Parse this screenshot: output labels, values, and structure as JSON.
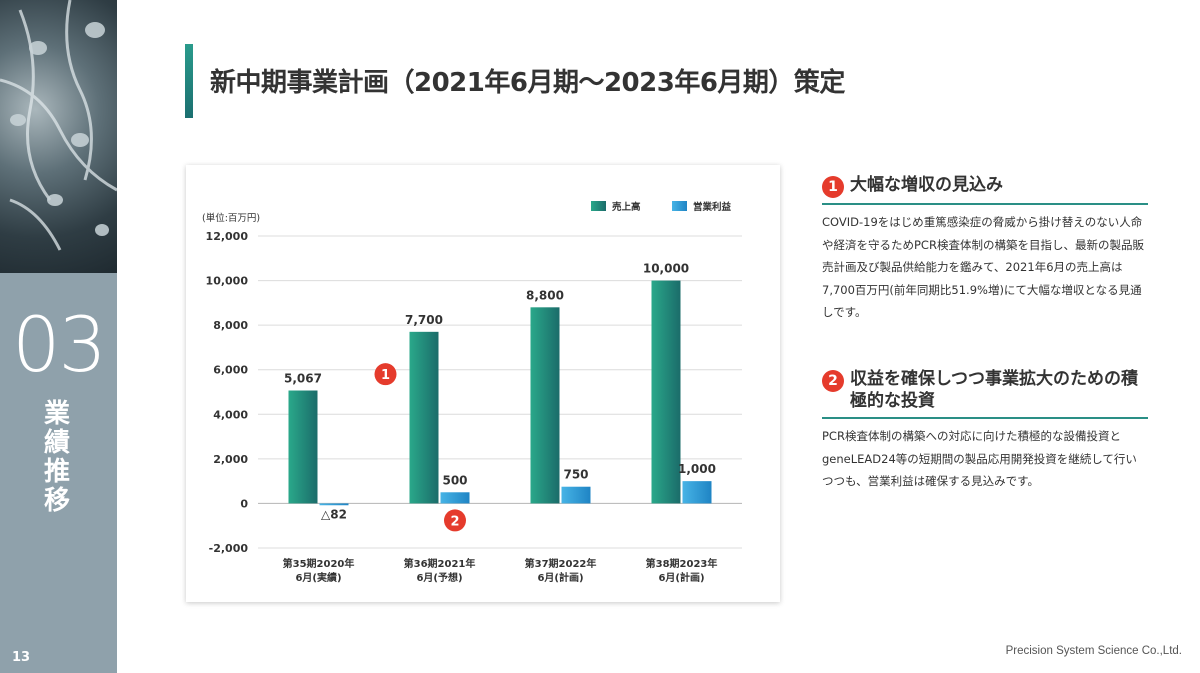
{
  "sidebar": {
    "section_number": "03",
    "section_title": "業績推移",
    "page_number": "13"
  },
  "page_title": "新中期事業計画（2021年6月期～2023年6月期）策定",
  "colors": {
    "accent": "#2a8f86",
    "sales": "#1f8c74",
    "operating_profit": "#2f9fd9",
    "badge": "#e53b2c",
    "sidebar": "#8fa1ab"
  },
  "chart_data": {
    "type": "bar",
    "unit_label": "(単位:百万円)",
    "categories": [
      [
        "第35期2020年",
        "6月(実績)"
      ],
      [
        "第36期2021年",
        "6月(予想)"
      ],
      [
        "第37期2022年",
        "6月(計画)"
      ],
      [
        "第38期2023年",
        "6月(計画)"
      ]
    ],
    "series": [
      {
        "name": "売上高",
        "values": [
          5067,
          7700,
          8800,
          10000
        ],
        "labels": [
          "5,067",
          "7,700",
          "8,800",
          "10,000"
        ]
      },
      {
        "name": "営業利益",
        "values": [
          -82,
          500,
          750,
          1000
        ],
        "labels": [
          "△82",
          "500",
          "750",
          "1,000"
        ]
      }
    ],
    "ylim": [
      -2000,
      12000
    ],
    "yticks": [
      12000,
      10000,
      8000,
      6000,
      4000,
      2000,
      0,
      -2000
    ],
    "ytick_labels": [
      "12,000",
      "10,000",
      "8,000",
      "6,000",
      "4,000",
      "2,000",
      "0",
      "-2,000"
    ],
    "legend_position": "top-right",
    "grid": true,
    "annotations": [
      {
        "label": "1",
        "category_index": 1,
        "series_index": 0
      },
      {
        "label": "2",
        "category_index": 1,
        "series_index": 1
      }
    ]
  },
  "points": [
    {
      "number": "1",
      "title": "大幅な増収の見込み",
      "body": "COVID-19をはじめ重篤感染症の脅威から掛け替えのない人命や経済を守るためPCR検査体制の構築を目指し、最新の製品販売計画及び製品供給能力を鑑みて、2021年6月の売上高は7,700百万円(前年同期比51.9%増)にて大幅な増収となる見通しです。"
    },
    {
      "number": "2",
      "title": "収益を確保しつつ事業拡大のための積極的な投資",
      "body": "PCR検査体制の構築への対応に向けた積極的な設備投資とgeneLEAD24等の短期間の製品応用開発投資を継続して行いつつも、営業利益は確保する見込みです。"
    }
  ],
  "footer": "Precision System Science Co.,Ltd."
}
